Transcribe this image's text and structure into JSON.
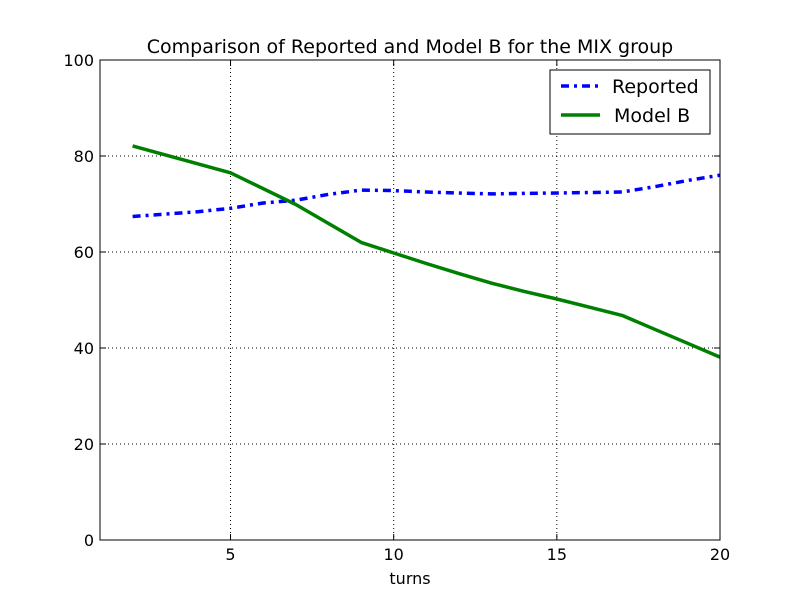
{
  "chart_data": {
    "type": "line",
    "title": "Comparison of Reported and Model B for the MIX group",
    "xlabel": "turns",
    "ylabel": "",
    "xlim": [
      1,
      20
    ],
    "ylim": [
      0,
      100
    ],
    "xticks": [
      5,
      10,
      15,
      20
    ],
    "yticks": [
      0,
      20,
      40,
      60,
      80,
      100
    ],
    "grid": true,
    "legend_position": "top-right",
    "series": [
      {
        "name": "Reported",
        "color": "#0000ff",
        "style": "dash-dot",
        "points": [
          [
            2,
            67.4
          ],
          [
            3,
            67.9
          ],
          [
            4,
            68.4
          ],
          [
            5,
            69.1
          ],
          [
            6,
            70.2
          ],
          [
            7,
            70.8
          ],
          [
            8,
            72.0
          ],
          [
            9,
            72.9
          ],
          [
            10,
            72.8
          ],
          [
            11,
            72.5
          ],
          [
            12,
            72.3
          ],
          [
            13,
            72.1
          ],
          [
            14,
            72.2
          ],
          [
            15,
            72.3
          ],
          [
            16,
            72.4
          ],
          [
            17,
            72.5
          ],
          [
            18,
            73.6
          ],
          [
            19,
            74.9
          ],
          [
            20,
            76.0
          ]
        ]
      },
      {
        "name": "Model B",
        "color": "#008000",
        "style": "solid",
        "points": [
          [
            2,
            82.1
          ],
          [
            5,
            76.5
          ],
          [
            7,
            69.9
          ],
          [
            9,
            62.0
          ],
          [
            10,
            59.8
          ],
          [
            11,
            57.6
          ],
          [
            12,
            55.5
          ],
          [
            13,
            53.5
          ],
          [
            14,
            51.8
          ],
          [
            15,
            50.2
          ],
          [
            16,
            48.5
          ],
          [
            17,
            46.8
          ],
          [
            18,
            43.9
          ],
          [
            19,
            41.0
          ],
          [
            20,
            38.1
          ]
        ]
      }
    ]
  }
}
